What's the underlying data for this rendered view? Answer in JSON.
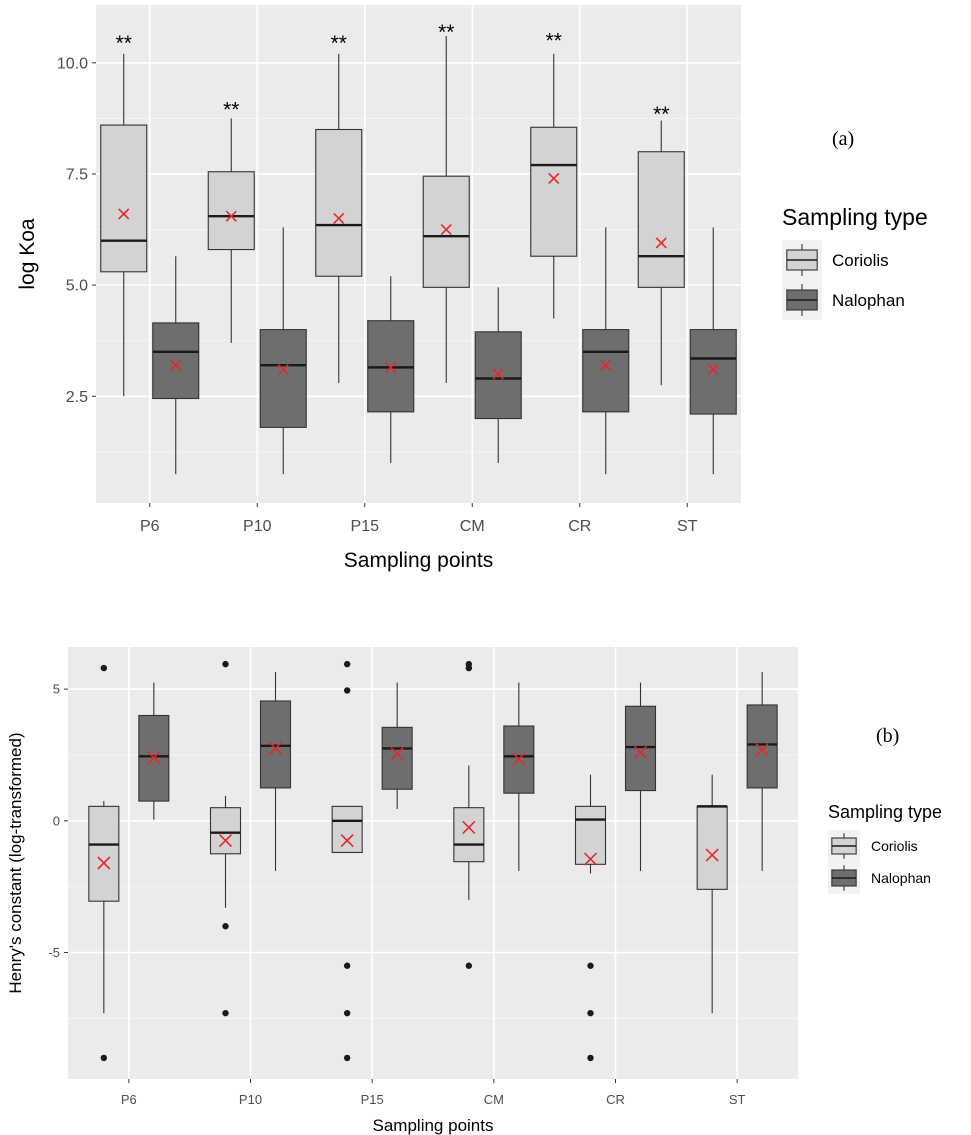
{
  "chart_data": [
    {
      "type": "boxplot",
      "panel_label": "(a)",
      "xlabel": "Sampling points",
      "ylabel": "log Koa",
      "ylim": [
        0.1,
        11.3
      ],
      "yticks": [
        2.5,
        5.0,
        7.5,
        10.0
      ],
      "ytick_labels": [
        "2.5",
        "5.0",
        "7.5",
        "10.0"
      ],
      "grid": true,
      "categories": [
        "P6",
        "P10",
        "P15",
        "CM",
        "CR",
        "ST"
      ],
      "legend": {
        "title": "Sampling type",
        "position": "right",
        "entries": [
          "Coriolis",
          "Nalophan"
        ]
      },
      "colors": {
        "Coriolis": "#d3d3d3",
        "Nalophan": "#6e6e6e",
        "mean_marker": "#e8262a"
      },
      "series": [
        {
          "name": "Coriolis",
          "boxes": [
            {
              "min": 2.5,
              "q1": 5.3,
              "median": 6.0,
              "q3": 8.6,
              "max": 10.2,
              "mean": 6.6,
              "outliers": []
            },
            {
              "min": 3.7,
              "q1": 5.8,
              "median": 6.55,
              "q3": 7.55,
              "max": 8.75,
              "mean": 6.55,
              "outliers": []
            },
            {
              "min": 2.8,
              "q1": 5.2,
              "median": 6.35,
              "q3": 8.5,
              "max": 10.2,
              "mean": 6.5,
              "outliers": []
            },
            {
              "min": 2.8,
              "q1": 4.95,
              "median": 6.1,
              "q3": 7.45,
              "max": 10.6,
              "mean": 6.25,
              "outliers": []
            },
            {
              "min": 4.25,
              "q1": 5.65,
              "median": 7.7,
              "q3": 8.55,
              "max": 10.2,
              "mean": 7.4,
              "outliers": []
            },
            {
              "min": 2.75,
              "q1": 4.95,
              "median": 5.65,
              "q3": 8.0,
              "max": 8.7,
              "mean": 5.95,
              "outliers": []
            }
          ]
        },
        {
          "name": "Nalophan",
          "boxes": [
            {
              "min": 0.75,
              "q1": 2.45,
              "median": 3.5,
              "q3": 4.15,
              "max": 5.65,
              "mean": 3.2,
              "outliers": []
            },
            {
              "min": 0.75,
              "q1": 1.8,
              "median": 3.2,
              "q3": 4.0,
              "max": 6.3,
              "mean": 3.1,
              "outliers": []
            },
            {
              "min": 1.0,
              "q1": 2.15,
              "median": 3.15,
              "q3": 4.2,
              "max": 5.2,
              "mean": 3.15,
              "outliers": []
            },
            {
              "min": 1.0,
              "q1": 2.0,
              "median": 2.9,
              "q3": 3.95,
              "max": 4.95,
              "mean": 3.0,
              "outliers": []
            },
            {
              "min": 0.75,
              "q1": 2.15,
              "median": 3.5,
              "q3": 4.0,
              "max": 6.3,
              "mean": 3.2,
              "outliers": []
            },
            {
              "min": 0.75,
              "q1": 2.1,
              "median": 3.35,
              "q3": 4.0,
              "max": 6.3,
              "mean": 3.1,
              "outliers": []
            }
          ]
        }
      ],
      "annotations": [
        {
          "category": "P6",
          "text": "**",
          "y": 10.55
        },
        {
          "category": "P10",
          "text": "**",
          "y": 9.05
        },
        {
          "category": "P15",
          "text": "**",
          "y": 10.55
        },
        {
          "category": "CM",
          "text": "**",
          "y": 10.8
        },
        {
          "category": "CR",
          "text": "**",
          "y": 10.6
        },
        {
          "category": "ST",
          "text": "**",
          "y": 8.95
        }
      ]
    },
    {
      "type": "boxplot",
      "panel_label": "(b)",
      "xlabel": "Sampling points",
      "ylabel": "Henry's constant (log-transformed)",
      "ylim": [
        -9.8,
        6.6
      ],
      "yticks": [
        -5,
        0,
        5
      ],
      "ytick_labels": [
        "-5",
        "0",
        "5"
      ],
      "grid": true,
      "categories": [
        "P6",
        "P10",
        "P15",
        "CM",
        "CR",
        "ST"
      ],
      "legend": {
        "title": "Sampling type",
        "position": "right",
        "entries": [
          "Coriolis",
          "Nalophan"
        ]
      },
      "colors": {
        "Coriolis": "#d3d3d3",
        "Nalophan": "#6e6e6e",
        "mean_marker": "#e8262a"
      },
      "series": [
        {
          "name": "Coriolis",
          "boxes": [
            {
              "min": -7.3,
              "q1": -3.05,
              "median": -0.9,
              "q3": 0.55,
              "max": 0.75,
              "mean": -1.6,
              "outliers": [
                5.8,
                -9.0
              ]
            },
            {
              "min": -3.3,
              "q1": -1.25,
              "median": -0.45,
              "q3": 0.5,
              "max": 0.95,
              "mean": -0.75,
              "outliers": [
                5.95,
                -4.0,
                -7.3
              ]
            },
            {
              "min": -1.2,
              "q1": -1.2,
              "median": 0.0,
              "q3": 0.55,
              "max": 0.55,
              "mean": -0.75,
              "outliers": [
                5.95,
                4.95,
                -5.5,
                -7.3,
                -9.0
              ]
            },
            {
              "min": -3.0,
              "q1": -1.55,
              "median": -0.9,
              "q3": 0.5,
              "max": 2.1,
              "mean": -0.25,
              "outliers": [
                5.95,
                5.8,
                -5.5
              ]
            },
            {
              "min": -2.0,
              "q1": -1.65,
              "median": 0.05,
              "q3": 0.55,
              "max": 1.75,
              "mean": -1.45,
              "outliers": [
                -5.5,
                -7.3,
                -9.0
              ]
            },
            {
              "min": -7.3,
              "q1": -2.6,
              "median": 0.55,
              "q3": 0.55,
              "max": 1.75,
              "mean": -1.3,
              "outliers": []
            }
          ]
        },
        {
          "name": "Nalophan",
          "boxes": [
            {
              "min": 0.05,
              "q1": 0.75,
              "median": 2.45,
              "q3": 4.0,
              "max": 5.25,
              "mean": 2.4,
              "outliers": []
            },
            {
              "min": -1.9,
              "q1": 1.25,
              "median": 2.85,
              "q3": 4.55,
              "max": 5.65,
              "mean": 2.75,
              "outliers": []
            },
            {
              "min": 0.45,
              "q1": 1.2,
              "median": 2.75,
              "q3": 3.55,
              "max": 5.25,
              "mean": 2.55,
              "outliers": []
            },
            {
              "min": -1.9,
              "q1": 1.05,
              "median": 2.45,
              "q3": 3.6,
              "max": 5.25,
              "mean": 2.35,
              "outliers": []
            },
            {
              "min": -1.9,
              "q1": 1.15,
              "median": 2.8,
              "q3": 4.35,
              "max": 5.25,
              "mean": 2.6,
              "outliers": []
            },
            {
              "min": -1.9,
              "q1": 1.25,
              "median": 2.9,
              "q3": 4.4,
              "max": 5.65,
              "mean": 2.7,
              "outliers": []
            }
          ]
        }
      ],
      "annotations": []
    }
  ]
}
